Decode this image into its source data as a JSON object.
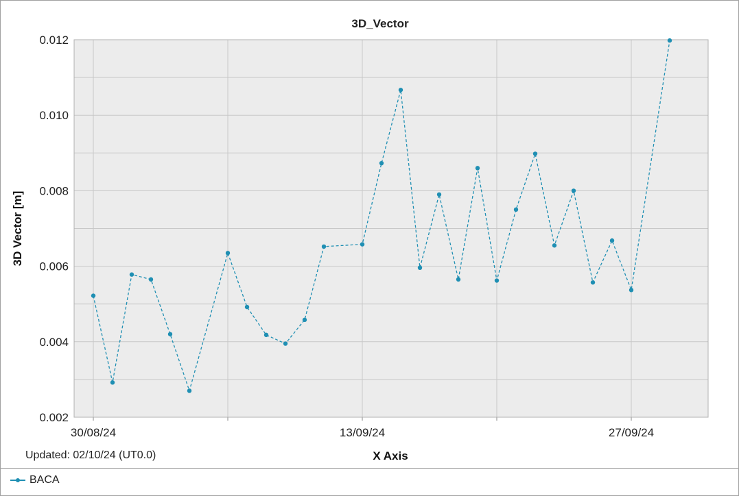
{
  "colors": {
    "series": "#1f8fb3",
    "plot_bg": "#ececec",
    "grid": "#c8c8c8"
  },
  "footer": {
    "updated": "Updated: 02/10/24 (UT0.0)"
  },
  "chart_data": {
    "type": "line",
    "title": "3D_Vector",
    "xlabel": "X Axis",
    "ylabel": "3D Vector [m]",
    "x_tick_labels": [
      "30/08/24",
      "13/09/24",
      "27/09/24"
    ],
    "x_tick_dates": [
      "2024-08-30",
      "2024-09-13",
      "2024-09-27"
    ],
    "xlim": [
      "2024-08-29",
      "2024-10-01"
    ],
    "ylim": [
      0.002,
      0.012
    ],
    "y_ticks": [
      0.002,
      0.004,
      0.006,
      0.008,
      0.01,
      0.012
    ],
    "y_tick_labels": [
      "0.002",
      "0.004",
      "0.006",
      "0.008",
      "0.010",
      "0.012"
    ],
    "grid": true,
    "legend_position": "bottom",
    "series": [
      {
        "name": "BACA",
        "line_style": "dashed",
        "marker": "circle",
        "points": [
          {
            "x": "2024-08-30",
            "y": 0.00522
          },
          {
            "x": "2024-08-31",
            "y": 0.00292
          },
          {
            "x": "2024-09-01",
            "y": 0.00578
          },
          {
            "x": "2024-09-02",
            "y": 0.00565
          },
          {
            "x": "2024-09-03",
            "y": 0.0042
          },
          {
            "x": "2024-09-04",
            "y": 0.0027
          },
          {
            "x": "2024-09-06",
            "y": 0.00635
          },
          {
            "x": "2024-09-07",
            "y": 0.00492
          },
          {
            "x": "2024-09-08",
            "y": 0.00418
          },
          {
            "x": "2024-09-09",
            "y": 0.00395
          },
          {
            "x": "2024-09-10",
            "y": 0.00458
          },
          {
            "x": "2024-09-11",
            "y": 0.00652
          },
          {
            "x": "2024-09-13",
            "y": 0.00658
          },
          {
            "x": "2024-09-14",
            "y": 0.00873
          },
          {
            "x": "2024-09-15",
            "y": 0.01067
          },
          {
            "x": "2024-09-16",
            "y": 0.00596
          },
          {
            "x": "2024-09-17",
            "y": 0.0079
          },
          {
            "x": "2024-09-18",
            "y": 0.00565
          },
          {
            "x": "2024-09-19",
            "y": 0.0086
          },
          {
            "x": "2024-09-20",
            "y": 0.00562
          },
          {
            "x": "2024-09-21",
            "y": 0.0075
          },
          {
            "x": "2024-09-22",
            "y": 0.00898
          },
          {
            "x": "2024-09-23",
            "y": 0.00655
          },
          {
            "x": "2024-09-24",
            "y": 0.008
          },
          {
            "x": "2024-09-25",
            "y": 0.00557
          },
          {
            "x": "2024-09-26",
            "y": 0.00668
          },
          {
            "x": "2024-09-27",
            "y": 0.00537
          },
          {
            "x": "2024-09-29",
            "y": 0.01198
          }
        ]
      }
    ]
  }
}
